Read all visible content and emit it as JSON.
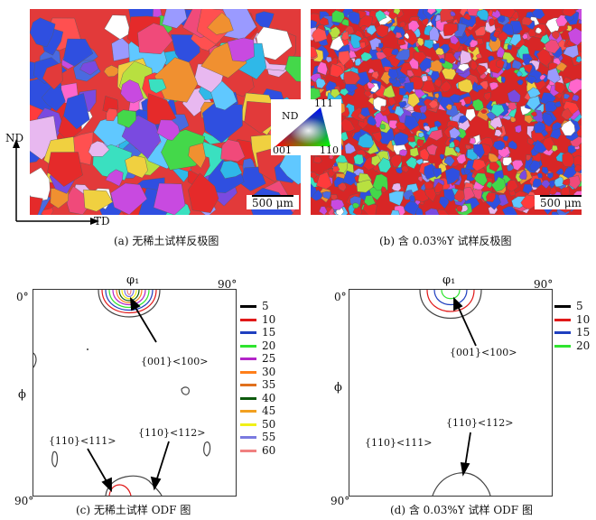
{
  "panels": {
    "a": {
      "caption": "(a) 无稀土试样反极图",
      "scale_text": "500 μm",
      "axis_nd": "ND",
      "axis_td": "TD"
    },
    "b": {
      "caption": "(b) 含 0.03%Y 试样反极图",
      "scale_text": "500 μm"
    },
    "ipf_key": {
      "label_nd": "ND",
      "label_111": "111",
      "label_001": "001",
      "label_110": "110"
    },
    "c": {
      "caption": "(c) 无稀土试样 ODF 图",
      "angle_0": "0°",
      "angle_90_top": "90°",
      "angle_90_left": "90°",
      "phi1": "φ₁",
      "phi": "ϕ",
      "annot_001": "{001}<100>",
      "annot_110_112": "{110}<112>",
      "annot_110_111": "{110}<111>",
      "legend": [
        {
          "value": "5",
          "color": "#000000"
        },
        {
          "value": "10",
          "color": "#e01919"
        },
        {
          "value": "15",
          "color": "#1f3fbf"
        },
        {
          "value": "20",
          "color": "#2fe42f"
        },
        {
          "value": "25",
          "color": "#b324c8"
        },
        {
          "value": "30",
          "color": "#ff7f1a"
        },
        {
          "value": "35",
          "color": "#e0701d"
        },
        {
          "value": "40",
          "color": "#0d5a0d"
        },
        {
          "value": "45",
          "color": "#f2a020"
        },
        {
          "value": "50",
          "color": "#f0f018"
        },
        {
          "value": "55",
          "color": "#7a7ae0"
        },
        {
          "value": "60",
          "color": "#f08080"
        }
      ]
    },
    "d": {
      "caption": "(d) 含 0.03%Y 试样 ODF 图",
      "angle_0": "0°",
      "angle_90_top": "90°",
      "angle_90_left": "90°",
      "phi1": "φ₁",
      "phi": "ϕ",
      "annot_001": "{001}<100>",
      "annot_110_112": "{110}<112>",
      "annot_110_111": "{110}<111>",
      "legend": [
        {
          "value": "5",
          "color": "#000000"
        },
        {
          "value": "10",
          "color": "#e01919"
        },
        {
          "value": "15",
          "color": "#1f3fbf"
        },
        {
          "value": "20",
          "color": "#2fe42f"
        }
      ]
    }
  }
}
